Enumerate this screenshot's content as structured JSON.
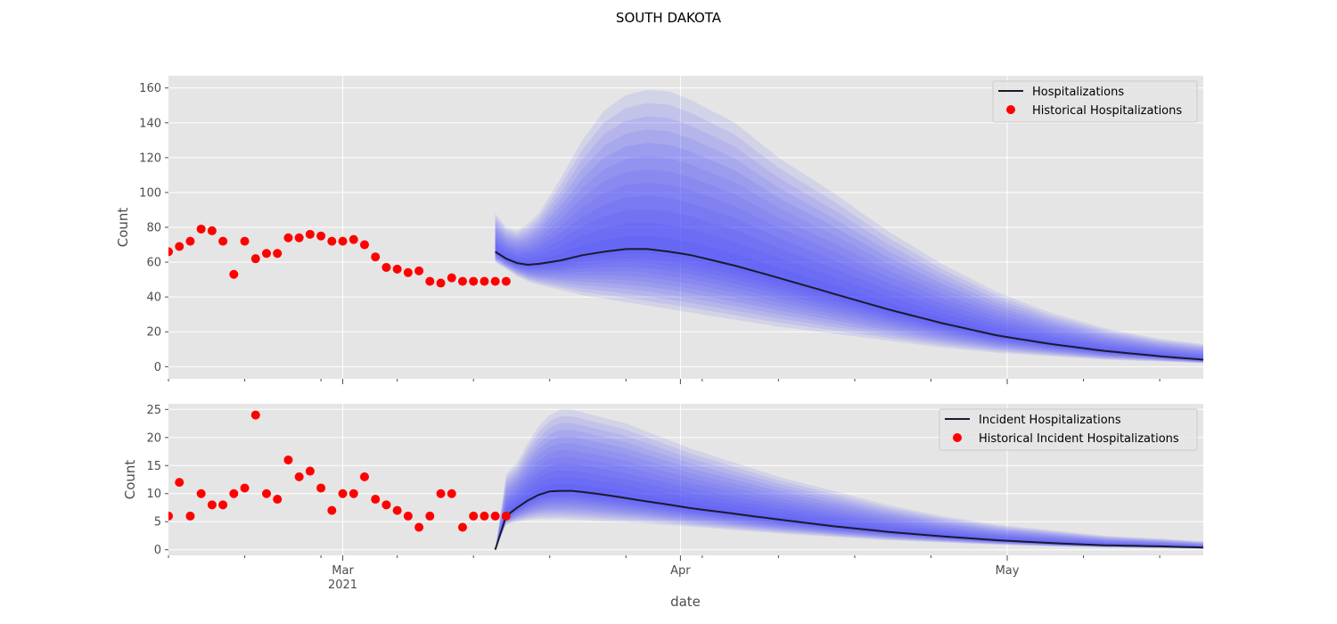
{
  "figure": {
    "title": "SOUTH DAKOTA",
    "xlabel": "date",
    "x_ticks": [
      {
        "date": "2021-03-01",
        "label": "Mar",
        "sublabel": "2021"
      },
      {
        "date": "2021-04-01",
        "label": "Apr",
        "sublabel": ""
      },
      {
        "date": "2021-05-01",
        "label": "May",
        "sublabel": ""
      }
    ],
    "xlim": [
      "2021-02-13",
      "2021-05-19"
    ]
  },
  "colors": {
    "background": "#e5e5e5",
    "grid": "#ffffff",
    "band": "#3b3bff",
    "median_line": "#1a1a2e",
    "historical": "#ff0000",
    "axis_text": "#4d4d4d"
  },
  "chart_data": [
    {
      "type": "line",
      "ylabel": "Count",
      "ylim": [
        -7,
        167
      ],
      "yticks": [
        0,
        20,
        40,
        60,
        80,
        100,
        120,
        140,
        160
      ],
      "legend_position": "top-right",
      "legend": [
        "Hospitalizations",
        "Historical Hospitalizations"
      ],
      "historical": {
        "name": "Historical Hospitalizations",
        "x": [
          "2021-02-13",
          "2021-02-14",
          "2021-02-15",
          "2021-02-16",
          "2021-02-17",
          "2021-02-18",
          "2021-02-19",
          "2021-02-20",
          "2021-02-21",
          "2021-02-22",
          "2021-02-23",
          "2021-02-24",
          "2021-02-25",
          "2021-02-26",
          "2021-02-27",
          "2021-02-28",
          "2021-03-01",
          "2021-03-02",
          "2021-03-03",
          "2021-03-04",
          "2021-03-05",
          "2021-03-06",
          "2021-03-07",
          "2021-03-08",
          "2021-03-09",
          "2021-03-10",
          "2021-03-11",
          "2021-03-12",
          "2021-03-13",
          "2021-03-14",
          "2021-03-15",
          "2021-03-16"
        ],
        "y": [
          66,
          69,
          72,
          79,
          78,
          72,
          53,
          72,
          62,
          65,
          65,
          74,
          74,
          76,
          75,
          72,
          72,
          73,
          70,
          63,
          57,
          56,
          54,
          55,
          49,
          48,
          51,
          49,
          49,
          49,
          49,
          49
        ]
      },
      "forecast": {
        "name": "Hospitalizations",
        "x": [
          "2021-03-15",
          "2021-03-16",
          "2021-03-17",
          "2021-03-18",
          "2021-03-19",
          "2021-03-21",
          "2021-03-23",
          "2021-03-25",
          "2021-03-27",
          "2021-03-29",
          "2021-03-31",
          "2021-04-02",
          "2021-04-06",
          "2021-04-10",
          "2021-04-15",
          "2021-04-20",
          "2021-04-25",
          "2021-04-30",
          "2021-05-05",
          "2021-05-10",
          "2021-05-15",
          "2021-05-19"
        ],
        "median": [
          66,
          62,
          59.5,
          58.5,
          59,
          61,
          64,
          66,
          67.5,
          67.5,
          66,
          64,
          58,
          51,
          42,
          33,
          25,
          18,
          13,
          9,
          6,
          4
        ],
        "upper": [
          88,
          80,
          78,
          82,
          88,
          108,
          130,
          147,
          156,
          159,
          158,
          153,
          140,
          120,
          100,
          78,
          59,
          43,
          31,
          22,
          16,
          13
        ],
        "lower": [
          60,
          56,
          52,
          49,
          47,
          44,
          41,
          39,
          37,
          35,
          33,
          31,
          27,
          23,
          19,
          15,
          11,
          8,
          6,
          4,
          3,
          2
        ]
      }
    },
    {
      "type": "line",
      "ylabel": "Count",
      "ylim": [
        -1,
        26
      ],
      "yticks": [
        0,
        5,
        10,
        15,
        20,
        25
      ],
      "legend_position": "top-right",
      "legend": [
        "Incident Hospitalizations",
        "Historical Incident Hospitalizations"
      ],
      "historical": {
        "name": "Historical Incident Hospitalizations",
        "x": [
          "2021-02-13",
          "2021-02-14",
          "2021-02-15",
          "2021-02-16",
          "2021-02-17",
          "2021-02-18",
          "2021-02-19",
          "2021-02-20",
          "2021-02-21",
          "2021-02-22",
          "2021-02-23",
          "2021-02-24",
          "2021-02-25",
          "2021-02-26",
          "2021-02-27",
          "2021-02-28",
          "2021-03-01",
          "2021-03-02",
          "2021-03-03",
          "2021-03-04",
          "2021-03-05",
          "2021-03-06",
          "2021-03-07",
          "2021-03-08",
          "2021-03-09",
          "2021-03-10",
          "2021-03-11",
          "2021-03-12",
          "2021-03-13",
          "2021-03-14",
          "2021-03-15",
          "2021-03-16"
        ],
        "y": [
          6,
          12,
          6,
          10,
          8,
          8,
          10,
          11,
          24,
          10,
          9,
          16,
          13,
          14,
          11,
          7,
          10,
          10,
          13,
          9,
          8,
          7,
          6,
          4,
          6,
          10,
          10,
          4,
          6,
          6,
          6,
          6
        ]
      },
      "forecast": {
        "name": "Incident Hospitalizations",
        "x": [
          "2021-03-15",
          "2021-03-16",
          "2021-03-17",
          "2021-03-18",
          "2021-03-19",
          "2021-03-20",
          "2021-03-21",
          "2021-03-22",
          "2021-03-23",
          "2021-03-25",
          "2021-03-27",
          "2021-03-29",
          "2021-03-31",
          "2021-04-02",
          "2021-04-06",
          "2021-04-10",
          "2021-04-15",
          "2021-04-20",
          "2021-04-25",
          "2021-04-30",
          "2021-05-05",
          "2021-05-10",
          "2021-05-15",
          "2021-05-19"
        ],
        "median": [
          0,
          6,
          7.5,
          8.8,
          9.8,
          10.4,
          10.5,
          10.5,
          10.3,
          9.8,
          9.2,
          8.6,
          8,
          7.4,
          6.4,
          5.4,
          4.2,
          3.2,
          2.4,
          1.7,
          1.2,
          0.8,
          0.6,
          0.4
        ],
        "upper": [
          0,
          13.5,
          15.5,
          19,
          22,
          24,
          25,
          25,
          24.5,
          23.5,
          22.5,
          21,
          19.5,
          18,
          15.5,
          13,
          10.5,
          8,
          6,
          4.5,
          3.5,
          2.5,
          2,
          1.5
        ],
        "lower": [
          0,
          4.5,
          5,
          5.3,
          5.5,
          5.5,
          5.5,
          5.4,
          5.3,
          5.1,
          4.9,
          4.7,
          4.4,
          4.1,
          3.5,
          2.9,
          2.3,
          1.7,
          1.3,
          0.9,
          0.6,
          0.4,
          0.3,
          0.2
        ]
      }
    }
  ]
}
